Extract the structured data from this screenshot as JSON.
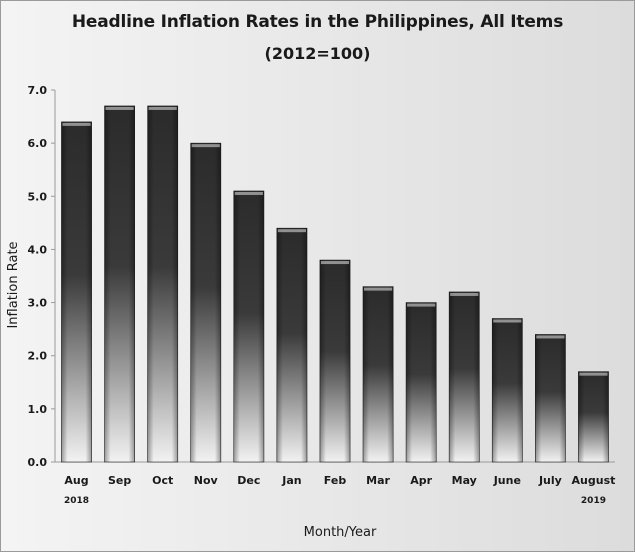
{
  "chart_data": {
    "type": "bar",
    "title": "Headline Inflation Rates in the Philippines, All Items",
    "subtitle": "(2012=100)",
    "xlabel": "Month/Year",
    "ylabel": "Inflation Rate",
    "categories": [
      "Aug",
      "Sep",
      "Oct",
      "Nov",
      "Dec",
      "Jan",
      "Feb",
      "Mar",
      "Apr",
      "May",
      "June",
      "July",
      "August"
    ],
    "category_sublabels": [
      "2018",
      "",
      "",
      "",
      "",
      "",
      "",
      "",
      "",
      "",
      "",
      "",
      "2019"
    ],
    "values": [
      6.4,
      6.7,
      6.7,
      6.0,
      5.1,
      4.4,
      3.8,
      3.3,
      3.0,
      3.2,
      2.7,
      2.4,
      1.7
    ],
    "ylim": [
      0,
      7.0
    ],
    "yticks": [
      "0.0",
      "1.0",
      "2.0",
      "3.0",
      "4.0",
      "5.0",
      "6.0",
      "7.0"
    ],
    "grid": false,
    "legend": "none",
    "colors": {
      "bar_dark": "#2b2b2b",
      "bar_light": "#f2f2f2",
      "bar_highlight": "#e6e6e6",
      "axis": "#9a9a9a"
    }
  }
}
